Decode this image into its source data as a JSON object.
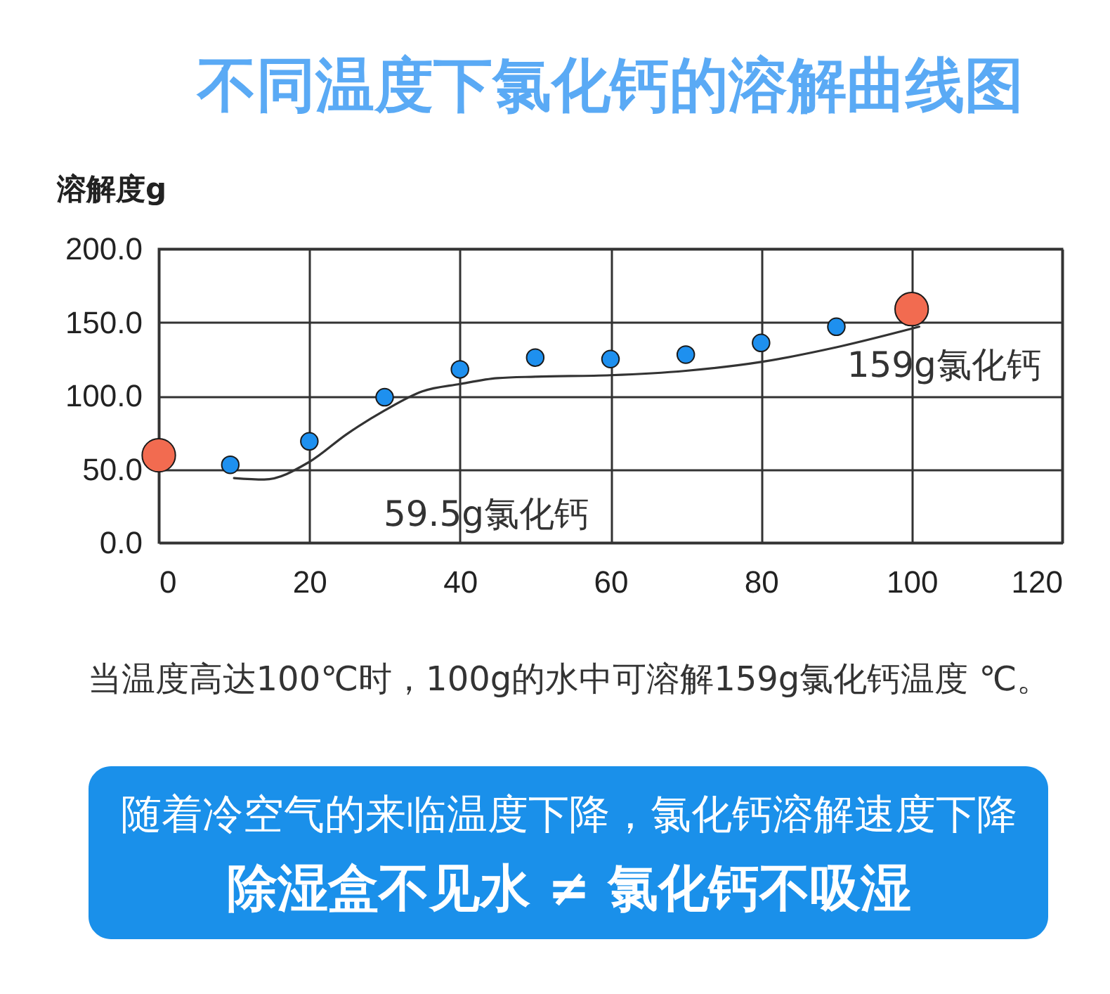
{
  "chart_data": {
    "type": "scatter",
    "title": "不同温度下氯化钙的溶解曲线图",
    "ylabel": "溶解度g",
    "xlim": [
      0,
      120
    ],
    "xticks": [
      0,
      20,
      40,
      60,
      80,
      100,
      120
    ],
    "ylim": [
      0,
      200
    ],
    "yticks": [
      {
        "value": 0,
        "label": "0.0"
      },
      {
        "value": 50,
        "label": "50.0"
      },
      {
        "value": 100,
        "label": "100.0"
      },
      {
        "value": 150,
        "label": "150.0"
      },
      {
        "value": 200,
        "label": "200.0"
      }
    ],
    "grid": true,
    "marker": "circle",
    "line_style": "solid",
    "series": [
      {
        "color": "#1e90ef",
        "x": [
          9.5,
          20,
          30,
          40,
          50,
          60,
          70,
          80,
          90
        ],
        "values": [
          53,
          69,
          99,
          118,
          126,
          125,
          128,
          136,
          147
        ]
      },
      {
        "color": "#f26b50",
        "x": [
          0,
          100
        ],
        "values": [
          59.5,
          159
        ]
      },
      {
        "type": "line",
        "marker": "none",
        "color": "#333333",
        "x": [
          10,
          14,
          20,
          25,
          30,
          35,
          40,
          45,
          50,
          60,
          70,
          80,
          90,
          101
        ],
        "values": [
          44,
          43,
          55,
          74,
          90,
          103,
          108,
          112,
          113,
          114,
          117,
          123,
          133,
          147
        ]
      }
    ],
    "annotations": [
      "59.5g氯化钙",
      {
        "text": "159g氯化钙",
        "x": 100,
        "y": 159
      },
      "当温度高达100℃时，100g的水中可溶解159g氯化钙温度 ℃。",
      "随着冷空气的来临温度下降，氯化钙溶解速度下降",
      "除湿盒不见水 ≠ 氯化钙不吸湿"
    ]
  }
}
